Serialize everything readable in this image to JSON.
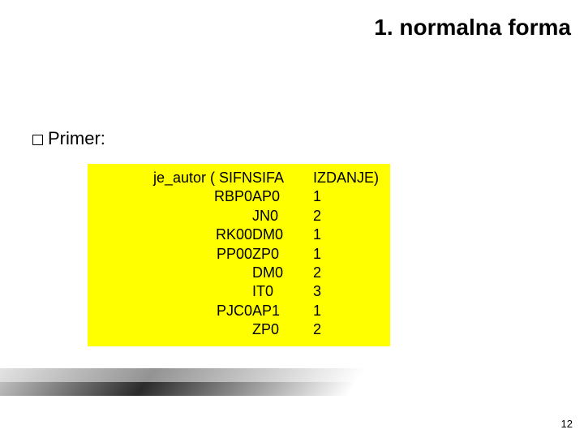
{
  "title": "1. normalna forma",
  "bullet_label": "Primer:",
  "table": {
    "background_color": "#ffff00",
    "text_color": "#000000",
    "fontsize": 18,
    "columns": {
      "sifn_header": "je_autor ( SIFN",
      "sifa_header": "SIFA",
      "izdanje_header": "IZDANJE)"
    },
    "rows": [
      {
        "sifn": "RBP0",
        "sifa": "AP0",
        "izdanje": "1"
      },
      {
        "sifn": "",
        "sifa": "JN0",
        "izdanje": "2"
      },
      {
        "sifn": "RK00",
        "sifa": "DM0",
        "izdanje": "1"
      },
      {
        "sifn": "PP00",
        "sifa": "ZP0",
        "izdanje": "1"
      },
      {
        "sifn": "",
        "sifa": "DM0",
        "izdanje": "2"
      },
      {
        "sifn": "",
        "sifa": "IT0",
        "izdanje": "3"
      },
      {
        "sifn": "PJC0",
        "sifa": "AP1",
        "izdanje": "1"
      },
      {
        "sifn": "",
        "sifa": "ZP0",
        "izdanje": "2"
      }
    ]
  },
  "page_number": "12",
  "colors": {
    "title": "#000000",
    "body_text": "#000000",
    "background": "#ffffff",
    "highlight": "#ffff00"
  }
}
